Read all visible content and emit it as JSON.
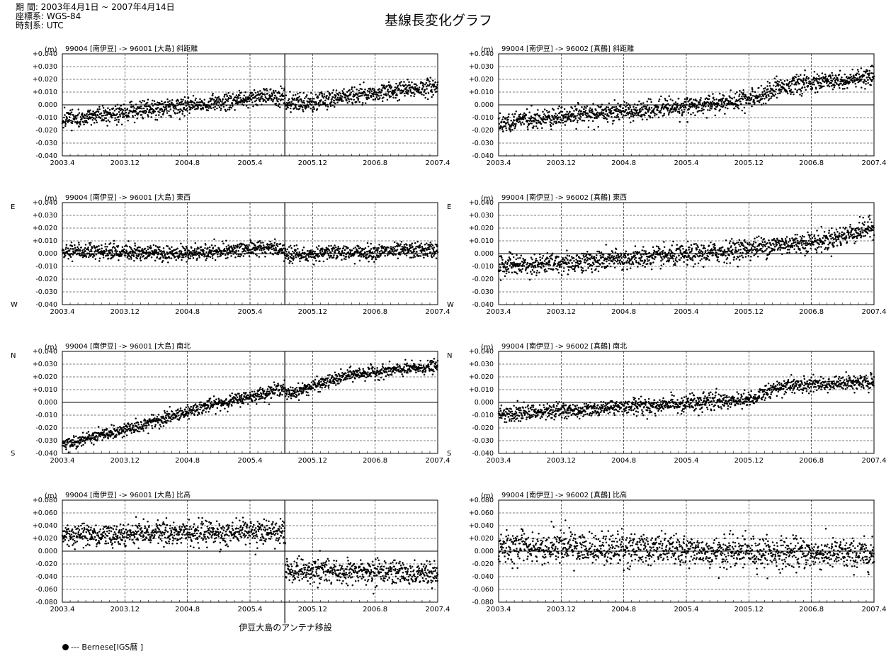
{
  "header": {
    "period": "期 間: 2003年4月1日 ~ 2007年4月14日",
    "datum": "座標系: WGS-84",
    "timesys": "時刻系: UTC",
    "title": "基線長変化グラフ"
  },
  "annotation": "伊豆大島のアンテナ移設",
  "legend": "--- Bernese[IGS暦 ]",
  "chart_data": [
    {
      "id": "c1",
      "type": "scatter",
      "unit": "(m)",
      "title": "99004 [南伊豆] -> 96001 [大島]  斜距離",
      "x_ticks": [
        "2003.4",
        "2003.12",
        "2004.8",
        "2005.4",
        "2005.12",
        "2006.8",
        "2007.4"
      ],
      "y_ticks": [
        "+0.040",
        "+0.030",
        "+0.020",
        "+0.010",
        "0.000",
        "-0.010",
        "-0.020",
        "-0.030",
        "-0.040"
      ],
      "ylim": [
        -0.04,
        0.04
      ],
      "top_label": "",
      "bottom_label": "",
      "event_line": true,
      "trend": [
        [
          2003.25,
          -0.012
        ],
        [
          2004.0,
          -0.005
        ],
        [
          2005.0,
          0.002
        ],
        [
          2005.5,
          0.007
        ],
        [
          2005.67,
          0.005
        ],
        [
          2005.68,
          0.0
        ],
        [
          2006.5,
          0.008
        ],
        [
          2007.28,
          0.014
        ]
      ],
      "noise": 0.0035,
      "seed": 11
    },
    {
      "id": "c2",
      "type": "scatter",
      "unit": "(m)",
      "title": "99004 [南伊豆] -> 96002 [真鶴]  斜距離",
      "x_ticks": [
        "2003.4",
        "2003.12",
        "2004.8",
        "2005.4",
        "2005.12",
        "2006.8",
        "2007.4"
      ],
      "y_ticks": [
        "+0.040",
        "+0.030",
        "+0.020",
        "+0.010",
        "0.000",
        "-0.010",
        "-0.020",
        "-0.030",
        "-0.040"
      ],
      "ylim": [
        -0.04,
        0.04
      ],
      "top_label": "",
      "bottom_label": "",
      "event_line": false,
      "trend": [
        [
          2003.25,
          -0.015
        ],
        [
          2004.0,
          -0.008
        ],
        [
          2004.7,
          -0.005
        ],
        [
          2005.5,
          0.0
        ],
        [
          2006.0,
          0.005
        ],
        [
          2006.35,
          0.015
        ],
        [
          2007.28,
          0.021
        ]
      ],
      "noise": 0.0035,
      "seed": 22
    },
    {
      "id": "c3",
      "type": "scatter",
      "unit": "(m)",
      "title": "99004 [南伊豆] -> 96001 [大島]  東西",
      "x_ticks": [
        "2003.4",
        "2003.12",
        "2004.8",
        "2005.4",
        "2005.12",
        "2006.8",
        "2007.4"
      ],
      "y_ticks": [
        "+0.040",
        "+0.030",
        "+0.020",
        "+0.010",
        "0.000",
        "-0.010",
        "-0.020",
        "-0.030",
        "-0.040"
      ],
      "ylim": [
        -0.04,
        0.04
      ],
      "top_label": "E",
      "bottom_label": "W",
      "event_line": true,
      "trend": [
        [
          2003.25,
          0.002
        ],
        [
          2004.5,
          0.0
        ],
        [
          2005.0,
          0.002
        ],
        [
          2005.5,
          0.005
        ],
        [
          2005.67,
          0.003
        ],
        [
          2005.68,
          -0.001
        ],
        [
          2006.5,
          0.001
        ],
        [
          2007.28,
          0.003
        ]
      ],
      "noise": 0.003,
      "seed": 33
    },
    {
      "id": "c4",
      "type": "scatter",
      "unit": "(m)",
      "title": "99004 [南伊豆] -> 96002 [真鶴]  東西",
      "x_ticks": [
        "2003.4",
        "2003.12",
        "2004.8",
        "2005.4",
        "2005.12",
        "2006.8",
        "2007.4"
      ],
      "y_ticks": [
        "+0.040",
        "+0.030",
        "+0.020",
        "+0.010",
        "0.000",
        "-0.010",
        "-0.020",
        "-0.030",
        "-0.040"
      ],
      "ylim": [
        -0.04,
        0.04
      ],
      "top_label": "E",
      "bottom_label": "W",
      "event_line": false,
      "trend": [
        [
          2003.25,
          -0.01
        ],
        [
          2004.0,
          -0.007
        ],
        [
          2004.7,
          -0.004
        ],
        [
          2005.5,
          0.0
        ],
        [
          2006.3,
          0.007
        ],
        [
          2006.8,
          0.01
        ],
        [
          2007.28,
          0.02
        ]
      ],
      "noise": 0.004,
      "seed": 44
    },
    {
      "id": "c5",
      "type": "scatter",
      "unit": "(m)",
      "title": "99004 [南伊豆] -> 96001 [大島]  南北",
      "x_ticks": [
        "2003.4",
        "2003.12",
        "2004.8",
        "2005.4",
        "2005.12",
        "2006.8",
        "2007.4"
      ],
      "y_ticks": [
        "+0.040",
        "+0.030",
        "+0.020",
        "+0.010",
        "0.000",
        "-0.010",
        "-0.020",
        "-0.030",
        "-0.040"
      ],
      "ylim": [
        -0.04,
        0.04
      ],
      "top_label": "N",
      "bottom_label": "S",
      "event_line": true,
      "trend": [
        [
          2003.25,
          -0.033
        ],
        [
          2004.0,
          -0.02
        ],
        [
          2004.7,
          -0.005
        ],
        [
          2005.5,
          0.008
        ],
        [
          2005.67,
          0.012
        ],
        [
          2005.68,
          0.006
        ],
        [
          2006.4,
          0.022
        ],
        [
          2007.28,
          0.028
        ]
      ],
      "noise": 0.0025,
      "seed": 55
    },
    {
      "id": "c6",
      "type": "scatter",
      "unit": "(m)",
      "title": "99004 [南伊豆] -> 96002 [真鶴]  南北",
      "x_ticks": [
        "2003.4",
        "2003.12",
        "2004.8",
        "2005.4",
        "2005.12",
        "2006.8",
        "2007.4"
      ],
      "y_ticks": [
        "+0.040",
        "+0.030",
        "+0.020",
        "+0.010",
        "0.000",
        "-0.010",
        "-0.020",
        "-0.030",
        "-0.040"
      ],
      "ylim": [
        -0.04,
        0.04
      ],
      "top_label": "N",
      "bottom_label": "S",
      "event_line": false,
      "trend": [
        [
          2003.25,
          -0.01
        ],
        [
          2004.0,
          -0.006
        ],
        [
          2004.7,
          -0.003
        ],
        [
          2005.5,
          0.0
        ],
        [
          2006.0,
          0.003
        ],
        [
          2006.35,
          0.013
        ],
        [
          2007.28,
          0.016
        ]
      ],
      "noise": 0.003,
      "seed": 66
    },
    {
      "id": "c7",
      "type": "scatter",
      "unit": "(m)",
      "title": "99004 [南伊豆] -> 96001 [大島]  比高",
      "x_ticks": [
        "2003.4",
        "2003.12",
        "2004.8",
        "2005.4",
        "2005.12",
        "2006.8",
        "2007.4"
      ],
      "y_ticks": [
        "+0.080",
        "+0.060",
        "+0.040",
        "+0.020",
        "0.000",
        "-0.020",
        "-0.040",
        "-0.060",
        "-0.080"
      ],
      "ylim": [
        -0.08,
        0.08
      ],
      "top_label": "",
      "bottom_label": "",
      "event_line": true,
      "trend": [
        [
          2003.25,
          0.025
        ],
        [
          2004.5,
          0.028
        ],
        [
          2005.67,
          0.03
        ],
        [
          2005.68,
          -0.03
        ],
        [
          2006.5,
          -0.033
        ],
        [
          2007.28,
          -0.035
        ]
      ],
      "noise": 0.009,
      "seed": 77
    },
    {
      "id": "c8",
      "type": "scatter",
      "unit": "(m)",
      "title": "99004 [南伊豆] -> 96002 [真鶴]  比高",
      "x_ticks": [
        "2003.4",
        "2003.12",
        "2004.8",
        "2005.4",
        "2005.12",
        "2006.8",
        "2007.4"
      ],
      "y_ticks": [
        "+0.080",
        "+0.060",
        "+0.040",
        "+0.020",
        "0.000",
        "-0.020",
        "-0.040",
        "-0.060",
        "-0.080"
      ],
      "ylim": [
        -0.08,
        0.08
      ],
      "top_label": "",
      "bottom_label": "",
      "event_line": false,
      "trend": [
        [
          2003.25,
          0.008
        ],
        [
          2004.5,
          0.004
        ],
        [
          2005.5,
          0.0
        ],
        [
          2006.5,
          -0.003
        ],
        [
          2007.28,
          -0.006
        ]
      ],
      "noise": 0.012,
      "seed": 88
    }
  ]
}
